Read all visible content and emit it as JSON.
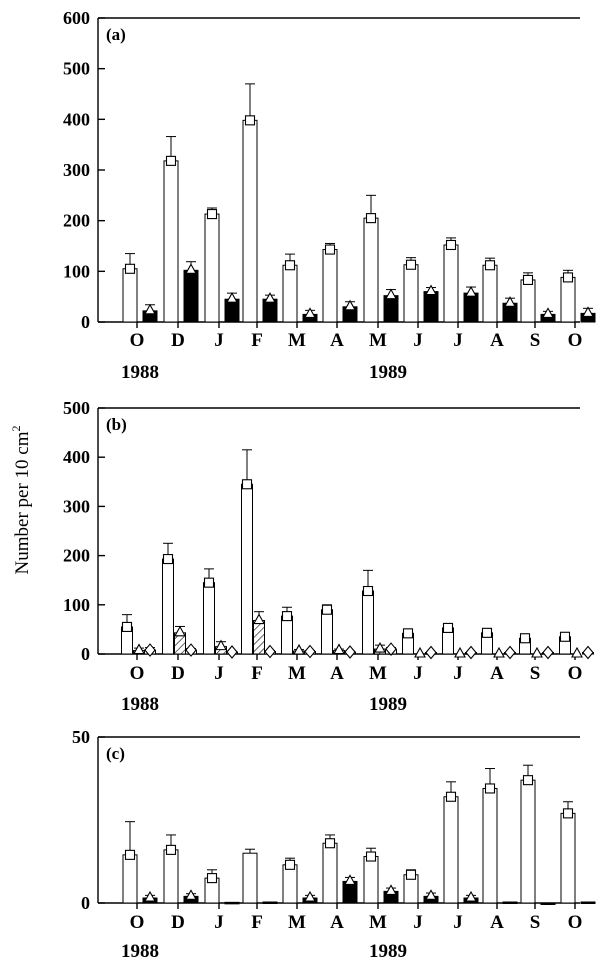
{
  "y_axis_label": "Number per 10 cm",
  "y_axis_label_superscript": "2",
  "chart_data": [
    {
      "type": "bar",
      "panel_label": "(a)",
      "categories": [
        "O",
        "D",
        "J",
        "F",
        "M",
        "A",
        "M",
        "J",
        "J",
        "A",
        "S",
        "O"
      ],
      "year_labels": [
        "1988",
        "1989"
      ],
      "ylim": [
        0,
        600
      ],
      "yticks": [
        0,
        100,
        200,
        300,
        400,
        500,
        600
      ],
      "series": [
        {
          "fill": "white",
          "marker": "square",
          "values": [
            105,
            318,
            213,
            398,
            112,
            143,
            205,
            113,
            152,
            112,
            83,
            88
          ],
          "errors": [
            30,
            48,
            12,
            72,
            22,
            12,
            45,
            14,
            14,
            14,
            14,
            14
          ]
        },
        {
          "fill": "black",
          "marker": "triangle",
          "values": [
            22,
            102,
            45,
            45,
            15,
            30,
            52,
            60,
            57,
            37,
            15,
            17
          ],
          "errors": [
            12,
            17,
            12,
            8,
            8,
            10,
            12,
            8,
            12,
            10,
            6,
            10
          ]
        }
      ]
    },
    {
      "type": "bar",
      "panel_label": "(b)",
      "categories": [
        "O",
        "D",
        "J",
        "F",
        "M",
        "A",
        "M",
        "J",
        "J",
        "A",
        "S",
        "O"
      ],
      "year_labels": [
        "1988",
        "1989"
      ],
      "ylim": [
        0,
        500
      ],
      "yticks": [
        0,
        100,
        200,
        300,
        400,
        500
      ],
      "series": [
        {
          "fill": "white",
          "marker": "square",
          "values": [
            55,
            193,
            145,
            345,
            77,
            90,
            128,
            42,
            53,
            43,
            32,
            35
          ],
          "errors": [
            25,
            32,
            28,
            70,
            18,
            10,
            42,
            8,
            8,
            8,
            8,
            8
          ]
        },
        {
          "fill": "hatched",
          "marker": "triangle",
          "values": [
            7,
            43,
            15,
            68,
            6,
            7,
            10,
            0,
            0,
            0,
            0,
            0
          ],
          "errors": [
            5,
            13,
            10,
            18,
            3,
            3,
            8,
            0,
            0,
            0,
            0,
            0
          ]
        },
        {
          "fill": "white",
          "marker": "diamond",
          "values": [
            8,
            8,
            4,
            5,
            5,
            4,
            10,
            3,
            3,
            3,
            3,
            3
          ],
          "errors": [
            5,
            3,
            2,
            2,
            2,
            2,
            3,
            1,
            1,
            1,
            1,
            1
          ]
        }
      ]
    },
    {
      "type": "bar",
      "panel_label": "(c)",
      "categories": [
        "O",
        "D",
        "J",
        "F",
        "M",
        "A",
        "M",
        "J",
        "J",
        "A",
        "S",
        "O"
      ],
      "year_labels": [
        "1988",
        "1989"
      ],
      "ylim": [
        0,
        50
      ],
      "yticks": [
        0,
        50
      ],
      "series": [
        {
          "fill": "white",
          "marker": "square",
          "values": [
            14.5,
            16,
            7.5,
            15,
            11.5,
            18,
            14,
            8.5,
            32,
            34.5,
            37,
            27
          ],
          "errors": [
            10,
            4.5,
            2.5,
            1.2,
            2,
            2.5,
            2.5,
            1.5,
            4.5,
            6,
            4.5,
            3.5
          ],
          "show_marker": [
            true,
            true,
            true,
            false,
            true,
            true,
            true,
            true,
            true,
            true,
            true,
            true
          ]
        },
        {
          "fill": "black",
          "marker": "triangle",
          "values": [
            1.5,
            2,
            0.2,
            0.3,
            1.5,
            6.5,
            3.5,
            2,
            1.5,
            0.3,
            0,
            0.3
          ],
          "errors": [
            0.8,
            0.8,
            0,
            0,
            0.8,
            1.2,
            1,
            1,
            0.8,
            0,
            0,
            0
          ],
          "show_marker": [
            true,
            true,
            false,
            false,
            true,
            true,
            true,
            true,
            true,
            false,
            false,
            false
          ]
        }
      ]
    }
  ]
}
